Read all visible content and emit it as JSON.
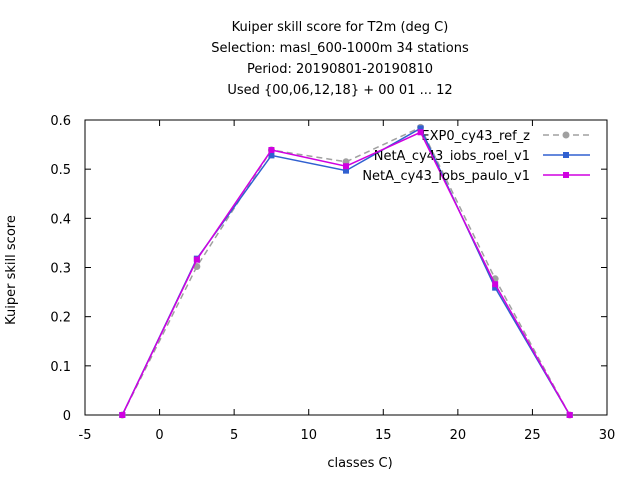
{
  "chart_data": {
    "type": "line",
    "title": [
      "Kuiper skill score  for T2m (deg C)",
      "Selection: masl_600-1000m     34 stations",
      "Period: 20190801-20190810",
      "Used {00,06,12,18} + 00 01 ... 12"
    ],
    "xlabel": "classes C)",
    "ylabel": "Kuiper skill score",
    "xlim": [
      -5,
      30
    ],
    "ylim": [
      0,
      0.6
    ],
    "xticks": [
      -5,
      0,
      5,
      10,
      15,
      20,
      25,
      30
    ],
    "yticks": [
      0,
      0.1,
      0.2,
      0.3,
      0.4,
      0.5,
      0.6
    ],
    "x": [
      -2.5,
      2.5,
      7.5,
      12.5,
      17.5,
      22.5,
      27.5
    ],
    "legend_position": "top-right",
    "grid": false,
    "series": [
      {
        "name": "EXP0_cy43_ref_z",
        "color": "#a0a0a0",
        "dash": true,
        "values": [
          0,
          0.302,
          0.539,
          0.515,
          0.585,
          0.277,
          0
        ]
      },
      {
        "name": "NetA_cy43_iobs_roel_v1",
        "color": "#3060d0",
        "dash": false,
        "values": [
          0,
          0.318,
          0.528,
          0.497,
          0.583,
          0.259,
          0
        ]
      },
      {
        "name": "NetA_cy43_iobs_paulo_v1",
        "color": "#d000e0",
        "dash": false,
        "values": [
          0,
          0.316,
          0.539,
          0.506,
          0.575,
          0.266,
          0
        ]
      }
    ]
  }
}
